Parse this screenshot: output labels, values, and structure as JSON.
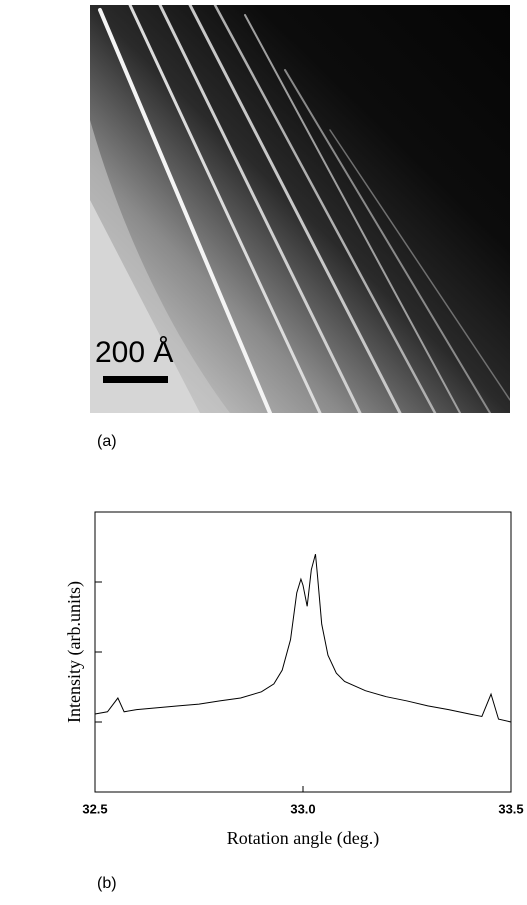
{
  "panel_a": {
    "label": "(a)",
    "scale_label": "200 Å"
  },
  "panel_b": {
    "label": "(b)"
  },
  "chart_data": {
    "type": "line",
    "xlabel": "Rotation angle (deg.)",
    "ylabel": "Intensity (arb.units)",
    "x": [
      32.5,
      32.53,
      32.555,
      32.57,
      32.6,
      32.65,
      32.7,
      32.75,
      32.8,
      32.85,
      32.9,
      32.93,
      32.95,
      32.97,
      32.985,
      32.995,
      33.0,
      33.01,
      33.02,
      33.03,
      33.035,
      33.045,
      33.06,
      33.08,
      33.1,
      33.15,
      33.2,
      33.25,
      33.3,
      33.35,
      33.4,
      33.43,
      33.452,
      33.47,
      33.5
    ],
    "values": [
      13,
      14,
      22,
      14,
      15,
      16,
      17,
      18,
      20,
      22,
      27,
      35,
      55,
      150,
      700,
      1100,
      900,
      450,
      1500,
      2500,
      1200,
      250,
      90,
      50,
      38,
      28,
      23,
      20,
      17,
      15,
      13,
      12,
      25,
      11,
      10
    ],
    "color": "#000000",
    "xlim": [
      32.5,
      33.5
    ],
    "xticks": [
      32.5,
      {
        "value": 33,
        "label": "33.0"
      },
      33.5
    ],
    "ylim": [
      1,
      10000
    ],
    "yticks": [
      1,
      10,
      100,
      1000,
      10000
    ],
    "log_y": true
  }
}
